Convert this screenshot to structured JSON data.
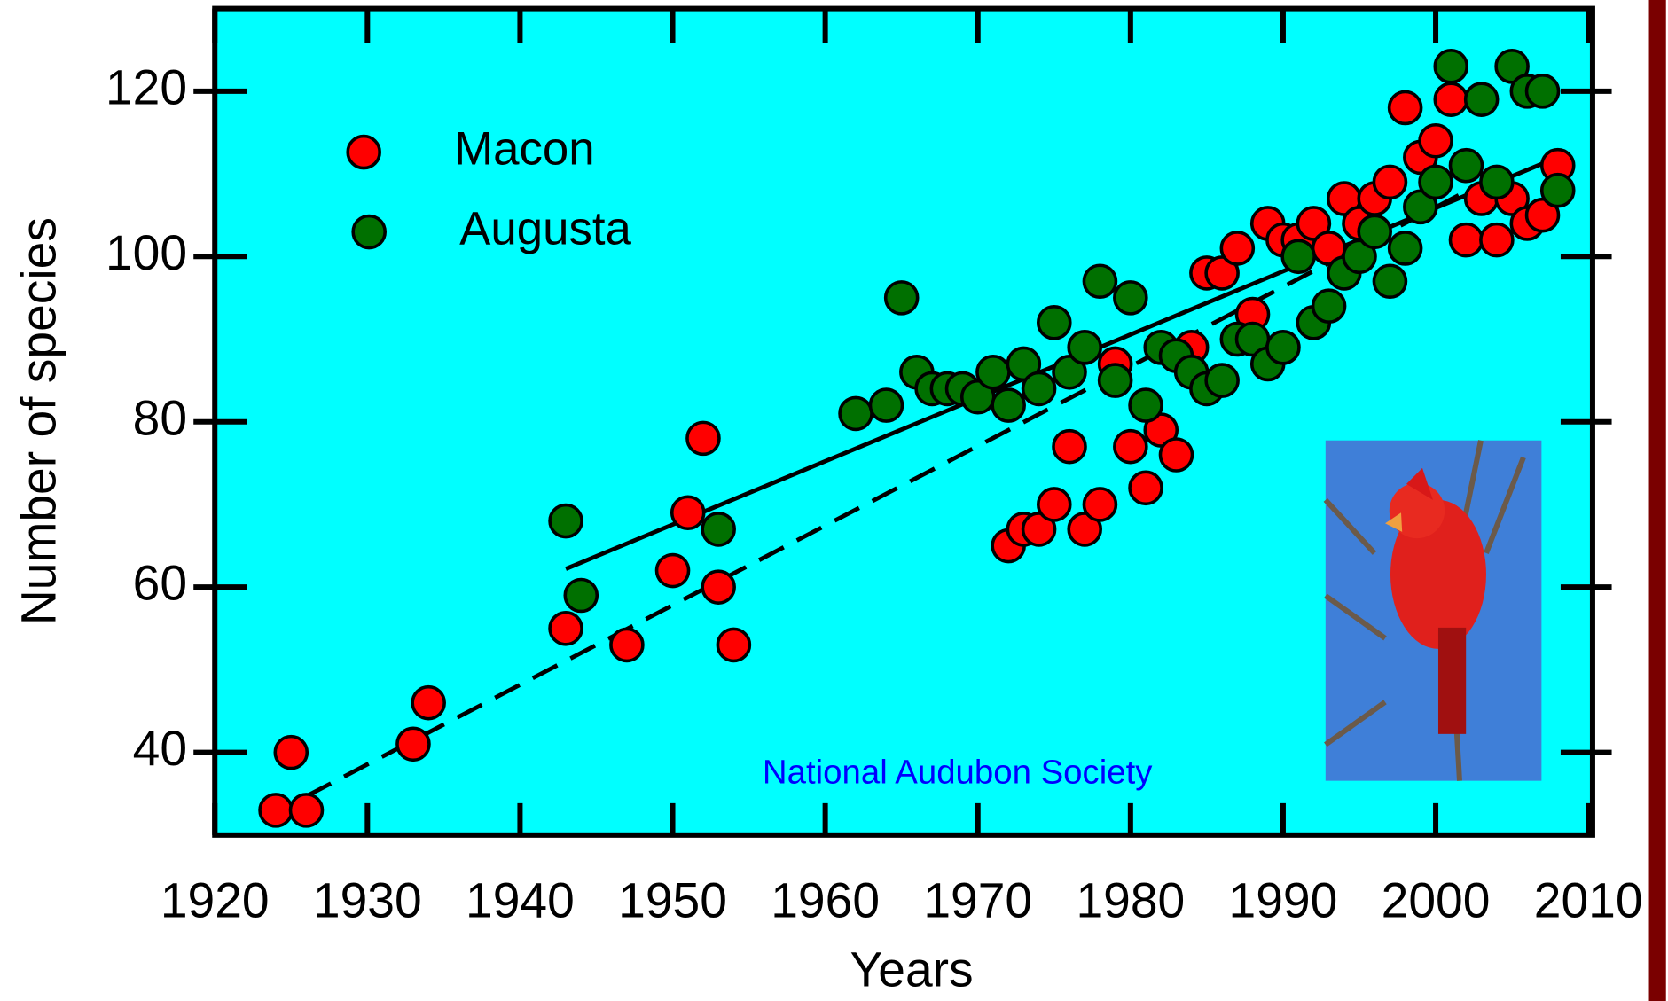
{
  "chart_data": {
    "type": "scatter",
    "x_label": "Years",
    "y_label": "Number of species",
    "annotation": "National Audubon Society",
    "xlim": [
      1920,
      2010
    ],
    "xticks": [
      1920,
      1930,
      1940,
      1950,
      1960,
      1970,
      1980,
      1990,
      2000,
      2010
    ],
    "ylim": [
      30,
      130
    ],
    "yticks": [
      40,
      60,
      80,
      100,
      120
    ],
    "legend": "upper left",
    "series": [
      {
        "name": "Macon",
        "color": "#ff0000",
        "x": [
          1924,
          1925,
          1926,
          1933,
          1934,
          1943,
          1947,
          1950,
          1951,
          1952,
          1953,
          1954,
          1972,
          1973,
          1974,
          1975,
          1976,
          1977,
          1978,
          1979,
          1980,
          1981,
          1982,
          1983,
          1984,
          1985,
          1986,
          1987,
          1988,
          1989,
          1990,
          1991,
          1992,
          1993,
          1994,
          1995,
          1996,
          1997,
          1998,
          1999,
          2000,
          2001,
          2002,
          2003,
          2004,
          2005,
          2006,
          2007,
          2008
        ],
        "values": [
          33,
          40,
          33,
          41,
          46,
          55,
          53,
          62,
          69,
          78,
          60,
          53,
          65,
          67,
          67,
          70,
          77,
          67,
          70,
          87,
          77,
          72,
          79,
          76,
          89,
          98,
          98,
          101,
          93,
          104,
          102,
          102,
          104,
          101,
          107,
          104,
          107,
          109,
          118,
          112,
          114,
          119,
          102,
          107,
          102,
          107,
          104,
          105,
          111
        ]
      },
      {
        "name": "Augusta",
        "color": "#007000",
        "x": [
          1943,
          1944,
          1953,
          1962,
          1964,
          1965,
          1966,
          1967,
          1968,
          1969,
          1970,
          1971,
          1972,
          1973,
          1974,
          1975,
          1976,
          1977,
          1978,
          1979,
          1980,
          1981,
          1982,
          1983,
          1984,
          1985,
          1986,
          1987,
          1988,
          1989,
          1990,
          1991,
          1992,
          1993,
          1994,
          1995,
          1996,
          1997,
          1998,
          1999,
          2000,
          2001,
          2002,
          2003,
          2004,
          2005,
          2006,
          2007,
          2008
        ],
        "values": [
          68,
          59,
          67,
          81,
          82,
          95,
          86,
          84,
          84,
          84,
          83,
          86,
          82,
          87,
          84,
          92,
          86,
          89,
          97,
          85,
          95,
          82,
          89,
          88,
          86,
          84,
          85,
          90,
          90,
          87,
          89,
          100,
          92,
          94,
          98,
          100,
          103,
          97,
          101,
          106,
          109,
          123,
          111,
          119,
          109,
          123,
          120,
          120,
          108
        ]
      }
    ],
    "trend_lines": [
      {
        "style": "solid",
        "x": [
          1943,
          2008
        ],
        "values": [
          62.2,
          112
        ]
      },
      {
        "style": "dashed",
        "x": [
          1926,
          2001.5
        ],
        "values": [
          34.7,
          107.4
        ]
      }
    ]
  }
}
